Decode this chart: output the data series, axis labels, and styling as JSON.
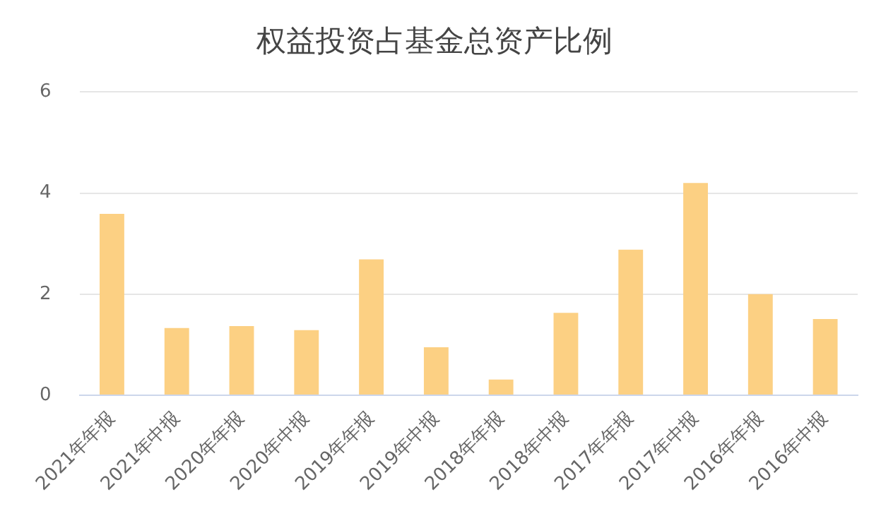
{
  "chart_data": {
    "type": "bar",
    "title": "权益投资占基金总资产比例",
    "categories": [
      "2021年年报",
      "2021年中报",
      "2020年年报",
      "2020年中报",
      "2019年年报",
      "2019年中报",
      "2018年年报",
      "2018年中报",
      "2017年年报",
      "2017年中报",
      "2016年年报",
      "2016年中报"
    ],
    "values": [
      3.59,
      1.33,
      1.37,
      1.29,
      2.69,
      0.95,
      0.31,
      1.63,
      2.88,
      4.2,
      2.0,
      1.51
    ],
    "color": "#fcd083",
    "ylim": [
      0,
      6
    ],
    "yticks": [
      0,
      2,
      4,
      6
    ],
    "grid": "y",
    "legend": false
  }
}
